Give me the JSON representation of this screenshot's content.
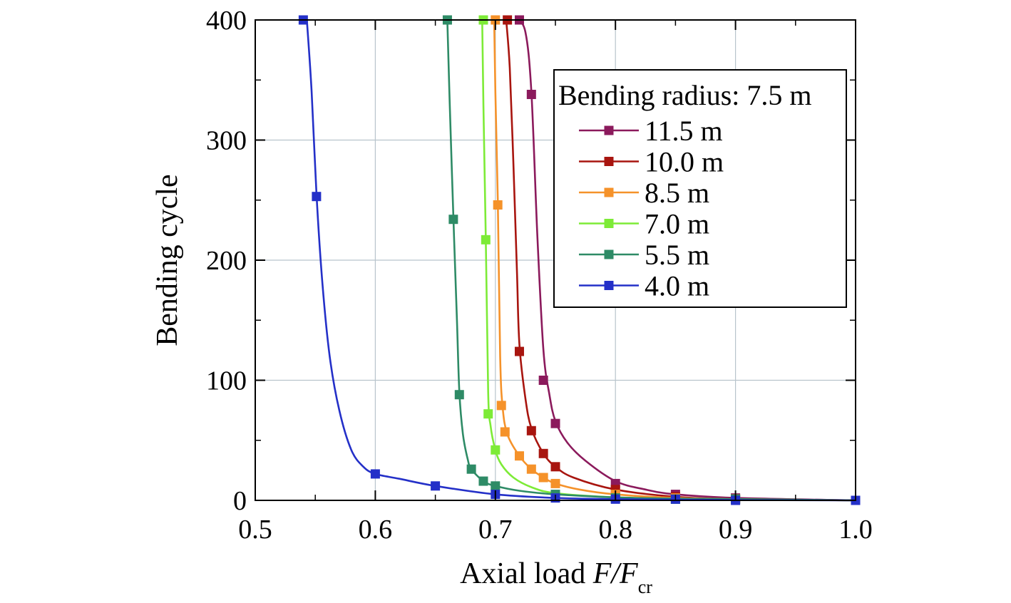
{
  "chart_data": {
    "type": "line",
    "title": "",
    "xlabel": {
      "prefix": "Axial load ",
      "var": "F/F",
      "sub": "cr"
    },
    "ylabel": "Bending cycle",
    "xlim": [
      0.5,
      1.0
    ],
    "ylim": [
      0,
      400
    ],
    "x_ticks": [
      "0.5",
      "0.6",
      "0.7",
      "0.8",
      "0.9",
      "1.0"
    ],
    "y_ticks": [
      "0",
      "100",
      "200",
      "300",
      "400"
    ],
    "grid": true,
    "legend": {
      "title": "Bending radius: 7.5 m",
      "position": "top-right"
    },
    "series": [
      {
        "name": "11.5 m",
        "color": "#8B1A5C",
        "points": [
          [
            0.72,
            400
          ],
          [
            0.73,
            338
          ],
          [
            0.74,
            100
          ],
          [
            0.75,
            64
          ],
          [
            0.8,
            14
          ],
          [
            0.85,
            5
          ],
          [
            0.9,
            2
          ],
          [
            1.0,
            0
          ]
        ],
        "curve": [
          [
            0.718,
            400
          ],
          [
            0.725,
            390
          ],
          [
            0.73,
            340
          ],
          [
            0.735,
            220
          ],
          [
            0.74,
            125
          ],
          [
            0.745,
            88
          ],
          [
            0.75,
            66
          ],
          [
            0.76,
            48
          ],
          [
            0.775,
            33
          ],
          [
            0.8,
            16
          ],
          [
            0.825,
            9
          ],
          [
            0.85,
            5
          ],
          [
            0.9,
            2
          ],
          [
            1.0,
            0
          ]
        ]
      },
      {
        "name": "10.0 m",
        "color": "#A8150F",
        "points": [
          [
            0.71,
            400
          ],
          [
            0.72,
            124
          ],
          [
            0.73,
            58
          ],
          [
            0.74,
            39
          ],
          [
            0.75,
            28
          ],
          [
            0.8,
            9
          ],
          [
            0.85,
            3
          ],
          [
            0.9,
            1
          ],
          [
            1.0,
            0
          ]
        ],
        "curve": [
          [
            0.709,
            400
          ],
          [
            0.712,
            360
          ],
          [
            0.715,
            280
          ],
          [
            0.718,
            190
          ],
          [
            0.72,
            130
          ],
          [
            0.725,
            85
          ],
          [
            0.73,
            60
          ],
          [
            0.74,
            39
          ],
          [
            0.75,
            28
          ],
          [
            0.765,
            19
          ],
          [
            0.8,
            9
          ],
          [
            0.85,
            3
          ],
          [
            0.9,
            1
          ],
          [
            1.0,
            0
          ]
        ]
      },
      {
        "name": "8.5 m",
        "color": "#F5922A",
        "points": [
          [
            0.7,
            400
          ],
          [
            0.702,
            246
          ],
          [
            0.705,
            79
          ],
          [
            0.708,
            57
          ],
          [
            0.72,
            37
          ],
          [
            0.73,
            26
          ],
          [
            0.74,
            19
          ],
          [
            0.75,
            14
          ],
          [
            0.8,
            5
          ],
          [
            0.85,
            2
          ],
          [
            0.9,
            1
          ],
          [
            1.0,
            0
          ]
        ],
        "curve": [
          [
            0.699,
            400
          ],
          [
            0.7,
            340
          ],
          [
            0.702,
            250
          ],
          [
            0.704,
            120
          ],
          [
            0.706,
            78
          ],
          [
            0.71,
            55
          ],
          [
            0.72,
            37
          ],
          [
            0.73,
            26
          ],
          [
            0.74,
            19
          ],
          [
            0.75,
            14
          ],
          [
            0.77,
            9
          ],
          [
            0.8,
            5
          ],
          [
            0.85,
            2
          ],
          [
            0.9,
            1
          ],
          [
            1.0,
            0
          ]
        ]
      },
      {
        "name": "7.0 m",
        "color": "#7DEB37",
        "points": [
          [
            0.69,
            400
          ],
          [
            0.692,
            217
          ],
          [
            0.694,
            72
          ],
          [
            0.7,
            42
          ],
          [
            0.75,
            4
          ],
          [
            0.8,
            2
          ],
          [
            0.85,
            1
          ],
          [
            0.9,
            1
          ],
          [
            1.0,
            0
          ]
        ],
        "curve": [
          [
            0.689,
            400
          ],
          [
            0.69,
            330
          ],
          [
            0.692,
            220
          ],
          [
            0.694,
            90
          ],
          [
            0.696,
            62
          ],
          [
            0.7,
            42
          ],
          [
            0.705,
            30
          ],
          [
            0.715,
            19
          ],
          [
            0.73,
            11
          ],
          [
            0.75,
            6
          ],
          [
            0.8,
            2.5
          ],
          [
            0.85,
            1.5
          ],
          [
            0.9,
            1
          ],
          [
            1.0,
            0
          ]
        ]
      },
      {
        "name": "5.5 m",
        "color": "#2E8B66",
        "points": [
          [
            0.66,
            400
          ],
          [
            0.665,
            234
          ],
          [
            0.67,
            88
          ],
          [
            0.68,
            26
          ],
          [
            0.69,
            16
          ],
          [
            0.7,
            12
          ],
          [
            0.75,
            5
          ],
          [
            0.8,
            2
          ],
          [
            0.85,
            1
          ],
          [
            0.9,
            1
          ],
          [
            1.0,
            0
          ]
        ],
        "curve": [
          [
            0.66,
            400
          ],
          [
            0.662,
            330
          ],
          [
            0.665,
            236
          ],
          [
            0.668,
            150
          ],
          [
            0.67,
            90
          ],
          [
            0.673,
            55
          ],
          [
            0.677,
            34
          ],
          [
            0.68,
            26
          ],
          [
            0.69,
            16
          ],
          [
            0.7,
            12
          ],
          [
            0.72,
            8
          ],
          [
            0.75,
            5
          ],
          [
            0.8,
            2.5
          ],
          [
            0.85,
            1.5
          ],
          [
            0.9,
            1
          ],
          [
            1.0,
            0
          ]
        ]
      },
      {
        "name": "4.0 m",
        "color": "#2430C8",
        "points": [
          [
            0.54,
            400
          ],
          [
            0.551,
            253
          ],
          [
            0.6,
            22
          ],
          [
            0.65,
            12
          ],
          [
            0.7,
            5
          ],
          [
            0.75,
            2
          ],
          [
            0.8,
            1
          ],
          [
            0.85,
            1
          ],
          [
            0.9,
            0
          ],
          [
            1.0,
            0
          ]
        ],
        "curve": [
          [
            0.543,
            400
          ],
          [
            0.547,
            340
          ],
          [
            0.551,
            255
          ],
          [
            0.556,
            180
          ],
          [
            0.562,
            120
          ],
          [
            0.57,
            75
          ],
          [
            0.58,
            42
          ],
          [
            0.59,
            28
          ],
          [
            0.6,
            22
          ],
          [
            0.62,
            18
          ],
          [
            0.65,
            12
          ],
          [
            0.7,
            5
          ],
          [
            0.75,
            2
          ],
          [
            0.8,
            1
          ],
          [
            0.9,
            0.3
          ],
          [
            1.0,
            0
          ]
        ]
      }
    ]
  }
}
